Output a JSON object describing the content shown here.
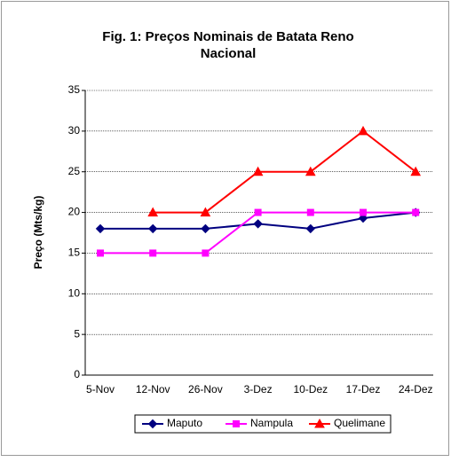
{
  "chart_data": {
    "type": "line",
    "title": "Fig. 1: Preços Nominais de Batata Reno",
    "subtitle": "Nacional",
    "y_label": "Preço (Mts/kg)",
    "categories": [
      "5-Nov",
      "12-Nov",
      "26-Nov",
      "3-Dez",
      "10-Dez",
      "17-Dez",
      "24-Dez"
    ],
    "series": [
      {
        "name": "Maputo",
        "color": "#000080",
        "marker": "diamond",
        "values": [
          18,
          18,
          18,
          18.6,
          18,
          19.3,
          20
        ]
      },
      {
        "name": "Nampula",
        "color": "#ff00ff",
        "marker": "square",
        "values": [
          15,
          15,
          15,
          20,
          20,
          20,
          20
        ]
      },
      {
        "name": "Quelimane",
        "color": "#ff0000",
        "marker": "triangle",
        "values": [
          null,
          20,
          20,
          25,
          25,
          30,
          25
        ]
      }
    ],
    "ylim": [
      0,
      35
    ],
    "yticks": [
      0,
      5,
      10,
      15,
      20,
      25,
      30,
      35
    ],
    "grid": true,
    "legend": "bottom"
  }
}
